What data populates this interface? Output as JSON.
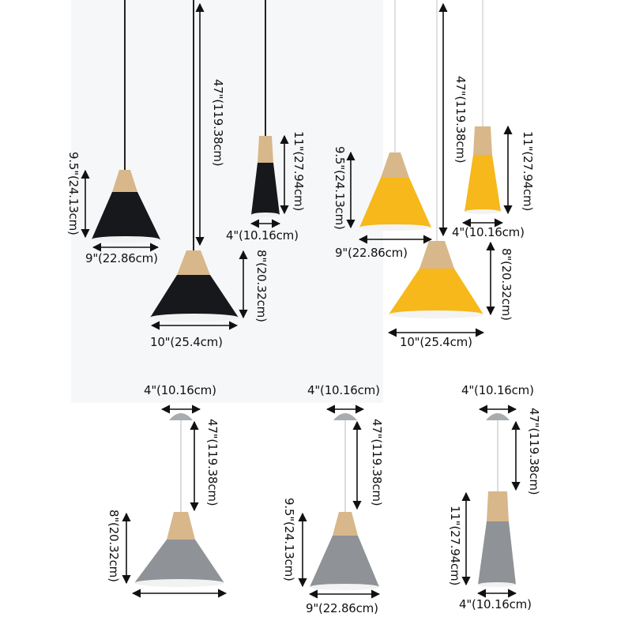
{
  "colors": {
    "black_shade": "#16181b",
    "yellow_shade": "#f6b81a",
    "gray_shade": "#8f9296",
    "wood": "#d8b78a",
    "dimension_line": "#111111"
  },
  "top_group": {
    "black_9in": {
      "height": "9.5\"(24.13cm)",
      "width": "9\"(22.86cm)"
    },
    "black_10in": {
      "drop": "47\"(119.38cm)",
      "height": "8\"(20.32cm)",
      "width": "10\"(25.4cm)"
    },
    "black_4in": {
      "height": "11\"(27.94cm)",
      "width": "4\"(10.16cm)"
    },
    "yellow_9in": {
      "height": "9.5\"(24.13cm)",
      "width": "9\"(22.86cm)"
    },
    "yellow_10in": {
      "drop": "47\"(119.38cm)",
      "height": "8\"(20.32cm)",
      "width": "10\"(25.4cm)"
    },
    "yellow_4in": {
      "height": "11\"(27.94cm)",
      "width": "4\"(10.16cm)"
    }
  },
  "bottom_group": {
    "gray_small": {
      "canopy_width": "4\"(10.16cm)",
      "drop": "47\"(119.38cm)",
      "height": "8\"(20.32cm)"
    },
    "gray_medium": {
      "canopy_width": "4\"(10.16cm)",
      "drop": "47\"(119.38cm)",
      "height": "9.5\"(24.13cm)",
      "width": "9\"(22.86cm)"
    },
    "gray_tall": {
      "canopy_width": "4\"(10.16cm)",
      "drop": "47\"(119.38cm)",
      "height": "11\"(27.94cm)",
      "width": "4\"(10.16cm)"
    }
  }
}
